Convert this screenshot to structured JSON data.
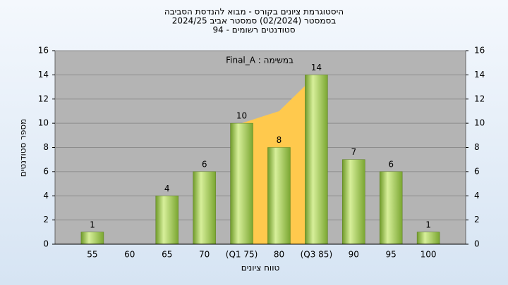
{
  "chart_data": {
    "type": "bar",
    "title": "היסטוגרמת ציונים בקורס - מבוא להנדסת הסביבה",
    "subtitle": "בסמסטר  (02/2024)  סמסטר אביב 2024/25",
    "subtitle2": "סטודנטים רשומים - 94",
    "annotation": "במשימה : Final_A",
    "x_label": "טווח ציונים",
    "y_label": "מספר סטודנטים",
    "categories": [
      "55",
      "60",
      "65",
      "70",
      "(Q1 75)",
      "80",
      "(Q3 85)",
      "90",
      "95",
      "100"
    ],
    "values": [
      1,
      0,
      4,
      6,
      10,
      8,
      14,
      7,
      6,
      1
    ],
    "value_labels": [
      "1",
      null,
      "4",
      "6",
      "10",
      "8",
      "14",
      "7",
      "6",
      "1"
    ],
    "color": "#9bc24a",
    "band_values": [
      null,
      null,
      null,
      null,
      10,
      11,
      14,
      null,
      null,
      null
    ],
    "band_color": "#ffc94d",
    "ylim": [
      0,
      16
    ],
    "yticks": [
      0,
      2,
      4,
      6,
      8,
      10,
      12,
      14,
      16
    ],
    "y2lim": [
      0,
      16
    ],
    "y2ticks": [
      0,
      2,
      4,
      6,
      8,
      10,
      12,
      14,
      16
    ],
    "grid": true
  }
}
